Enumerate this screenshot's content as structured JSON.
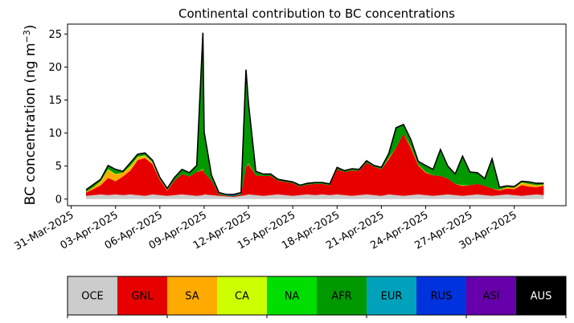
{
  "chart_data": {
    "type": "area",
    "stacked": true,
    "title": "Continental contribution to BC concentrations",
    "ylabel": "BC concentration (ng m",
    "ylabel_sup": "−3",
    "ylabel_close": ")",
    "xlabel": "",
    "ylim": [
      -1,
      26.5
    ],
    "yticks": [
      0,
      5,
      10,
      15,
      20,
      25
    ],
    "xlim": [
      "2025-03-30T18:00",
      "2025-05-03T12:00"
    ],
    "xticks": [
      "2025-03-31",
      "2025-04-03",
      "2025-04-06",
      "2025-04-09",
      "2025-04-12",
      "2025-04-15",
      "2025-04-18",
      "2025-04-21",
      "2025-04-24",
      "2025-04-27",
      "2025-04-30"
    ],
    "xtick_labels": [
      "31-Mar-2025",
      "03-Apr-2025",
      "06-Apr-2025",
      "09-Apr-2025",
      "12-Apr-2025",
      "15-Apr-2025",
      "18-Apr-2025",
      "21-Apr-2025",
      "24-Apr-2025",
      "27-Apr-2025",
      "30-Apr-2025"
    ],
    "grid": false,
    "x": [
      "2025-04-01T00:00",
      "2025-04-01T12:00",
      "2025-04-02T00:00",
      "2025-04-02T12:00",
      "2025-04-03T00:00",
      "2025-04-03T12:00",
      "2025-04-04T00:00",
      "2025-04-04T12:00",
      "2025-04-05T00:00",
      "2025-04-05T12:00",
      "2025-04-06T00:00",
      "2025-04-06T12:00",
      "2025-04-07T00:00",
      "2025-04-07T12:00",
      "2025-04-08T00:00",
      "2025-04-08T12:00",
      "2025-04-08T22:00",
      "2025-04-09T00:00",
      "2025-04-09T12:00",
      "2025-04-10T00:00",
      "2025-04-10T12:00",
      "2025-04-11T00:00",
      "2025-04-11T12:00",
      "2025-04-11T20:00",
      "2025-04-12T00:00",
      "2025-04-12T12:00",
      "2025-04-13T00:00",
      "2025-04-13T12:00",
      "2025-04-14T00:00",
      "2025-04-14T12:00",
      "2025-04-15T00:00",
      "2025-04-15T12:00",
      "2025-04-16T00:00",
      "2025-04-16T12:00",
      "2025-04-17T00:00",
      "2025-04-17T12:00",
      "2025-04-18T00:00",
      "2025-04-18T12:00",
      "2025-04-19T00:00",
      "2025-04-19T12:00",
      "2025-04-20T00:00",
      "2025-04-20T12:00",
      "2025-04-21T00:00",
      "2025-04-21T12:00",
      "2025-04-22T00:00",
      "2025-04-22T12:00",
      "2025-04-23T00:00",
      "2025-04-23T12:00",
      "2025-04-24T00:00",
      "2025-04-24T12:00",
      "2025-04-25T00:00",
      "2025-04-25T12:00",
      "2025-04-26T00:00",
      "2025-04-26T12:00",
      "2025-04-27T00:00",
      "2025-04-27T12:00",
      "2025-04-28T00:00",
      "2025-04-28T12:00",
      "2025-04-29T00:00",
      "2025-04-29T12:00",
      "2025-04-30T00:00",
      "2025-04-30T12:00",
      "2025-05-01T00:00",
      "2025-05-01T12:00",
      "2025-05-02T00:00"
    ],
    "series": [
      {
        "name": "OCE",
        "color": "#cccccc",
        "values": [
          0.5,
          0.6,
          0.7,
          0.6,
          0.7,
          0.6,
          0.7,
          0.6,
          0.5,
          0.7,
          0.6,
          0.5,
          0.6,
          0.7,
          0.6,
          0.5,
          0.6,
          0.7,
          0.6,
          0.5,
          0.4,
          0.3,
          0.5,
          0.6,
          0.7,
          0.6,
          0.5,
          0.6,
          0.7,
          0.6,
          0.5,
          0.6,
          0.7,
          0.6,
          0.7,
          0.6,
          0.7,
          0.6,
          0.5,
          0.6,
          0.7,
          0.6,
          0.5,
          0.7,
          0.6,
          0.5,
          0.6,
          0.7,
          0.6,
          0.5,
          0.6,
          0.7,
          0.6,
          0.5,
          0.6,
          0.7,
          0.6,
          0.5,
          0.6,
          0.7,
          0.6,
          0.5,
          0.6,
          0.7,
          0.6
        ]
      },
      {
        "name": "GNL",
        "color": "#e60000",
        "values": [
          0.5,
          0.9,
          1.4,
          2.6,
          2.0,
          2.8,
          3.6,
          5.3,
          5.7,
          4.6,
          2.3,
          0.8,
          2.2,
          3.1,
          2.8,
          3.6,
          3.8,
          3.3,
          2.2,
          0.2,
          0.1,
          0.1,
          0.2,
          4.2,
          4.6,
          3.0,
          3.0,
          2.9,
          2.1,
          2.0,
          1.9,
          1.3,
          1.5,
          1.7,
          1.6,
          1.5,
          3.8,
          3.5,
          3.8,
          3.7,
          4.8,
          4.3,
          4.0,
          5.4,
          7.2,
          9.4,
          7.1,
          4.4,
          3.4,
          3.1,
          2.9,
          2.4,
          1.7,
          1.5,
          1.5,
          1.6,
          1.4,
          1.1,
          0.7,
          0.9,
          0.9,
          1.6,
          1.3,
          1.1,
          1.4
        ]
      },
      {
        "name": "SA",
        "color": "#ffaa00",
        "values": [
          0.1,
          0.3,
          0.5,
          1.2,
          1.0,
          0.6,
          0.5,
          0.4,
          0.3,
          0.2,
          0.1,
          0.1,
          0.0,
          0.0,
          0.0,
          0.0,
          0.0,
          0.0,
          0.0,
          0.0,
          0.0,
          0.0,
          0.0,
          0.0,
          0.0,
          0.0,
          0.0,
          0.0,
          0.0,
          0.0,
          0.0,
          0.0,
          0.0,
          0.0,
          0.0,
          0.0,
          0.0,
          0.0,
          0.0,
          0.0,
          0.0,
          0.0,
          0.0,
          0.0,
          0.0,
          0.0,
          0.2,
          0.1,
          0.0,
          0.0,
          0.0,
          0.0,
          0.0,
          0.0,
          0.0,
          0.0,
          0.0,
          0.0,
          0.1,
          0.2,
          0.2,
          0.3,
          0.4,
          0.3,
          0.2
        ]
      },
      {
        "name": "CA",
        "color": "#ccff00",
        "values": [
          0.0,
          0.0,
          0.1,
          0.1,
          0.1,
          0.0,
          0.2,
          0.1,
          0.1,
          0.1,
          0.0,
          0.0,
          0.0,
          0.0,
          0.0,
          0.0,
          0.1,
          0.0,
          0.0,
          0.0,
          0.0,
          0.0,
          0.0,
          0.0,
          0.1,
          0.0,
          0.0,
          0.0,
          0.0,
          0.0,
          0.0,
          0.0,
          0.0,
          0.0,
          0.0,
          0.0,
          0.0,
          0.0,
          0.0,
          0.0,
          0.0,
          0.0,
          0.0,
          0.1,
          0.0,
          0.0,
          0.0,
          0.0,
          0.1,
          0.0,
          0.0,
          0.0,
          0.0,
          0.1,
          0.0,
          0.0,
          0.0,
          0.0,
          0.0,
          0.0,
          0.0,
          0.1,
          0.0,
          0.0,
          0.0
        ]
      },
      {
        "name": "NA",
        "color": "#00dd00",
        "values": [
          0.0,
          0.0,
          0.0,
          0.0,
          0.0,
          0.0,
          0.0,
          0.0,
          0.0,
          0.0,
          0.0,
          0.0,
          0.0,
          0.0,
          0.0,
          0.0,
          0.0,
          0.0,
          0.0,
          0.0,
          0.0,
          0.0,
          0.0,
          0.0,
          0.0,
          0.0,
          0.0,
          0.0,
          0.0,
          0.0,
          0.0,
          0.0,
          0.0,
          0.0,
          0.0,
          0.0,
          0.0,
          0.0,
          0.0,
          0.0,
          0.0,
          0.0,
          0.0,
          0.0,
          0.0,
          0.0,
          0.0,
          0.0,
          0.0,
          0.0,
          0.0,
          0.0,
          0.0,
          0.0,
          0.0,
          0.0,
          0.0,
          0.0,
          0.0,
          0.0,
          0.0,
          0.0,
          0.0,
          0.0,
          0.0
        ]
      },
      {
        "name": "AFR",
        "color": "#009900",
        "values": [
          0.3,
          0.4,
          0.3,
          0.6,
          0.7,
          0.2,
          0.5,
          0.4,
          0.4,
          0.3,
          0.3,
          0.2,
          0.5,
          0.7,
          0.6,
          1.0,
          20.5,
          6.0,
          0.8,
          0.2,
          0.1,
          0.1,
          0.2,
          14.6,
          9.0,
          0.6,
          0.3,
          0.3,
          0.2,
          0.2,
          0.2,
          0.2,
          0.2,
          0.2,
          0.2,
          0.2,
          0.3,
          0.2,
          0.3,
          0.2,
          0.3,
          0.2,
          0.3,
          0.7,
          3.0,
          1.4,
          1.1,
          0.5,
          1.0,
          0.9,
          4.0,
          1.9,
          1.5,
          4.4,
          2.0,
          1.7,
          1.1,
          4.5,
          0.4,
          0.2,
          0.2,
          0.2,
          0.3,
          0.3,
          0.2
        ]
      },
      {
        "name": "EUR",
        "color": "#00a2bb",
        "values": [
          0.0,
          0.0,
          0.0,
          0.0,
          0.0,
          0.0,
          0.0,
          0.0,
          0.0,
          0.0,
          0.0,
          0.0,
          0.0,
          0.0,
          0.0,
          0.0,
          0.1,
          0.1,
          0.0,
          0.0,
          0.0,
          0.0,
          0.0,
          0.1,
          0.1,
          0.0,
          0.0,
          0.0,
          0.0,
          0.0,
          0.0,
          0.0,
          0.0,
          0.0,
          0.0,
          0.0,
          0.0,
          0.0,
          0.0,
          0.0,
          0.0,
          0.0,
          0.0,
          0.0,
          0.0,
          0.0,
          0.0,
          0.0,
          0.0,
          0.0,
          0.0,
          0.0,
          0.0,
          0.0,
          0.0,
          0.0,
          0.0,
          0.0,
          0.0,
          0.0,
          0.0,
          0.0,
          0.0,
          0.0,
          0.0
        ]
      },
      {
        "name": "RUS",
        "color": "#0033dd",
        "values": [
          0.0,
          0.0,
          0.0,
          0.0,
          0.0,
          0.0,
          0.0,
          0.0,
          0.0,
          0.0,
          0.0,
          0.0,
          0.0,
          0.0,
          0.0,
          0.0,
          0.1,
          0.1,
          0.0,
          0.1,
          0.1,
          0.2,
          0.1,
          0.1,
          0.1,
          0.0,
          0.0,
          0.0,
          0.0,
          0.0,
          0.0,
          0.0,
          0.0,
          0.0,
          0.0,
          0.0,
          0.0,
          0.0,
          0.0,
          0.0,
          0.0,
          0.0,
          0.0,
          0.0,
          0.0,
          0.0,
          0.0,
          0.0,
          0.0,
          0.0,
          0.0,
          0.0,
          0.0,
          0.0,
          0.0,
          0.0,
          0.0,
          0.0,
          0.0,
          0.0,
          0.0,
          0.0,
          0.0,
          0.0,
          0.0
        ]
      },
      {
        "name": "ASI",
        "color": "#6600aa",
        "values": [
          0.0,
          0.0,
          0.0,
          0.0,
          0.0,
          0.0,
          0.0,
          0.0,
          0.0,
          0.0,
          0.0,
          0.0,
          0.0,
          0.0,
          0.0,
          0.0,
          0.0,
          0.0,
          0.0,
          0.0,
          0.0,
          0.0,
          0.0,
          0.0,
          0.0,
          0.0,
          0.0,
          0.0,
          0.0,
          0.0,
          0.0,
          0.0,
          0.0,
          0.0,
          0.0,
          0.0,
          0.0,
          0.0,
          0.0,
          0.0,
          0.0,
          0.0,
          0.0,
          0.0,
          0.0,
          0.0,
          0.0,
          0.0,
          0.0,
          0.0,
          0.0,
          0.0,
          0.0,
          0.0,
          0.0,
          0.0,
          0.0,
          0.0,
          0.0,
          0.0,
          0.0,
          0.0,
          0.0,
          0.0,
          0.0
        ]
      },
      {
        "name": "AUS",
        "color": "#000000",
        "values": [
          0.0,
          0.0,
          0.0,
          0.0,
          0.0,
          0.0,
          0.0,
          0.0,
          0.0,
          0.0,
          0.0,
          0.0,
          0.0,
          0.0,
          0.0,
          0.0,
          0.0,
          0.0,
          0.0,
          0.0,
          0.0,
          0.0,
          0.0,
          0.0,
          0.0,
          0.0,
          0.0,
          0.0,
          0.0,
          0.0,
          0.0,
          0.0,
          0.0,
          0.0,
          0.0,
          0.0,
          0.0,
          0.0,
          0.0,
          0.0,
          0.0,
          0.0,
          0.0,
          0.0,
          0.0,
          0.0,
          0.0,
          0.0,
          0.0,
          0.0,
          0.0,
          0.0,
          0.0,
          0.0,
          0.0,
          0.0,
          0.0,
          0.0,
          0.0,
          0.0,
          0.0,
          0.0,
          0.0,
          0.0,
          0.0
        ]
      }
    ],
    "total_line_color": "#000000",
    "legend": {
      "placement": "bottom",
      "entries": [
        {
          "label": "OCE",
          "color": "#cccccc",
          "text_color": "#000000"
        },
        {
          "label": "GNL",
          "color": "#e60000",
          "text_color": "#000000"
        },
        {
          "label": "SA",
          "color": "#ffaa00",
          "text_color": "#000000"
        },
        {
          "label": "CA",
          "color": "#ccff00",
          "text_color": "#000000"
        },
        {
          "label": "NA",
          "color": "#00dd00",
          "text_color": "#000000"
        },
        {
          "label": "AFR",
          "color": "#009900",
          "text_color": "#000000"
        },
        {
          "label": "EUR",
          "color": "#00a2bb",
          "text_color": "#000000"
        },
        {
          "label": "RUS",
          "color": "#0033dd",
          "text_color": "#000000"
        },
        {
          "label": "ASI",
          "color": "#6600aa",
          "text_color": "#000000"
        },
        {
          "label": "AUS",
          "color": "#000000",
          "text_color": "#ffffff"
        }
      ]
    }
  }
}
